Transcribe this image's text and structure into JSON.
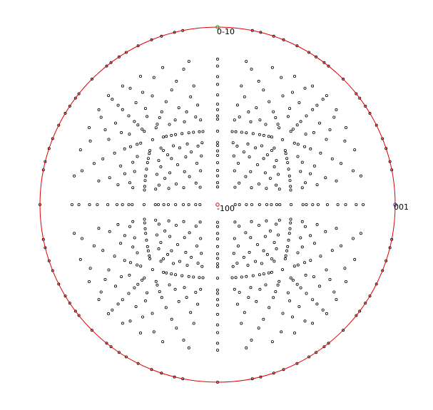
{
  "projection": {
    "type": "stereographic pole figure",
    "circle_color": "#e00000",
    "point_color": "#000000",
    "labels": {
      "top_pole": "0-10",
      "center_pole": "-100",
      "right_pole": "001"
    },
    "pole_colors": {
      "top_pole": "#1c8c1c",
      "center_pole": "#d00000",
      "right_pole": "#1030c0"
    }
  }
}
